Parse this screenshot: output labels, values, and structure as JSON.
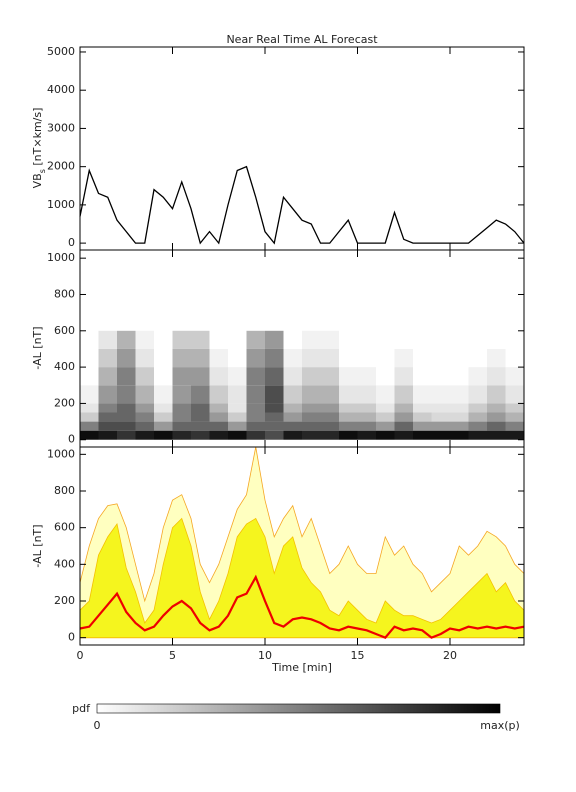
{
  "chart_data": [
    {
      "type": "line",
      "title": "Near Real Time AL Forecast",
      "ylabel": {
        "main": "VB",
        "sub": "s",
        "unit": " [nT×km/s]"
      },
      "xlim": [
        0,
        24
      ],
      "xticks": [
        0,
        5,
        10,
        15,
        20
      ],
      "ylim": [
        -180,
        5130
      ],
      "yticks": [
        0,
        1000,
        2000,
        3000,
        4000,
        5000
      ],
      "x": [
        0,
        0.5,
        1,
        1.5,
        2,
        2.5,
        3,
        3.5,
        4,
        4.5,
        5,
        5.5,
        6,
        6.5,
        7,
        7.5,
        8,
        8.5,
        9,
        9.5,
        10,
        10.5,
        11,
        11.5,
        12,
        12.5,
        13,
        13.5,
        14,
        14.5,
        15,
        15.5,
        16,
        16.5,
        17,
        17.5,
        18,
        18.5,
        19,
        19.5,
        20,
        20.5,
        21,
        21.5,
        22,
        22.5,
        23,
        23.5,
        24
      ],
      "series": [
        {
          "color": "#000000",
          "values": [
            700,
            1900,
            1300,
            1200,
            600,
            300,
            0,
            0,
            1400,
            1200,
            900,
            1600,
            900,
            0,
            300,
            0,
            1000,
            1900,
            2000,
            1200,
            300,
            0,
            1200,
            900,
            600,
            500,
            0,
            0,
            300,
            600,
            0,
            0,
            0,
            0,
            800,
            100,
            0,
            0,
            0,
            0,
            0,
            0,
            0,
            200,
            400,
            600,
            500,
            300,
            0
          ]
        }
      ]
    },
    {
      "type": "heatmap",
      "ylabel": "-AL [nT]",
      "xlim": [
        0,
        24
      ],
      "xticks": [
        0,
        5,
        10,
        15,
        20
      ],
      "ylim": [
        -40,
        1045
      ],
      "yticks": [
        0,
        200,
        400,
        600,
        800,
        1000
      ],
      "x_edges": [
        0,
        1,
        2,
        3,
        4,
        5,
        6,
        7,
        8,
        9,
        10,
        11,
        12,
        13,
        14,
        15,
        16,
        17,
        18,
        19,
        20,
        21,
        22,
        23,
        24
      ],
      "y_edges": [
        0,
        50,
        100,
        150,
        200,
        300,
        400,
        500,
        600
      ],
      "z": [
        [
          0.95,
          0.9,
          0.8,
          0.9,
          0.95,
          0.85,
          0.8,
          0.9,
          0.95,
          0.8,
          0.7,
          0.9,
          0.85,
          0.85,
          0.95,
          0.9,
          0.95,
          0.9,
          0.95,
          0.95,
          0.95,
          0.9,
          0.9,
          0.9
        ],
        [
          0.5,
          0.7,
          0.7,
          0.6,
          0.4,
          0.6,
          0.6,
          0.6,
          0.4,
          0.6,
          0.6,
          0.6,
          0.6,
          0.6,
          0.5,
          0.5,
          0.4,
          0.6,
          0.4,
          0.4,
          0.4,
          0.5,
          0.6,
          0.5
        ],
        [
          0.2,
          0.6,
          0.6,
          0.5,
          0.2,
          0.5,
          0.6,
          0.4,
          0.2,
          0.5,
          0.6,
          0.4,
          0.5,
          0.5,
          0.3,
          0.3,
          0.2,
          0.4,
          0.2,
          0.15,
          0.15,
          0.3,
          0.4,
          0.3
        ],
        [
          0.1,
          0.5,
          0.6,
          0.4,
          0.1,
          0.5,
          0.6,
          0.3,
          0.1,
          0.5,
          0.7,
          0.3,
          0.4,
          0.4,
          0.2,
          0.2,
          0.1,
          0.3,
          0.1,
          0.1,
          0.1,
          0.2,
          0.3,
          0.2
        ],
        [
          0.05,
          0.4,
          0.5,
          0.3,
          0.05,
          0.4,
          0.5,
          0.2,
          0.1,
          0.5,
          0.7,
          0.2,
          0.3,
          0.3,
          0.1,
          0.1,
          0.05,
          0.2,
          0.05,
          0.05,
          0.05,
          0.1,
          0.2,
          0.1
        ],
        [
          0,
          0.3,
          0.5,
          0.2,
          0,
          0.4,
          0.4,
          0.1,
          0.05,
          0.5,
          0.6,
          0.1,
          0.2,
          0.2,
          0.05,
          0.05,
          0,
          0.1,
          0,
          0,
          0,
          0.05,
          0.1,
          0.05
        ],
        [
          0,
          0.2,
          0.4,
          0.1,
          0,
          0.3,
          0.3,
          0.05,
          0,
          0.4,
          0.5,
          0.05,
          0.1,
          0.1,
          0,
          0,
          0,
          0.05,
          0,
          0,
          0,
          0,
          0.05,
          0
        ],
        [
          0,
          0.1,
          0.3,
          0.05,
          0,
          0.2,
          0.2,
          0,
          0,
          0.3,
          0.4,
          0,
          0.05,
          0.05,
          0,
          0,
          0,
          0,
          0,
          0,
          0,
          0,
          0,
          0
        ]
      ]
    },
    {
      "type": "area",
      "ylabel": "-AL [nT]",
      "xlabel": "Time [min]",
      "xlim": [
        0,
        24
      ],
      "xticks": [
        0,
        5,
        10,
        15,
        20
      ],
      "ylim": [
        -40,
        1040
      ],
      "yticks": [
        0,
        200,
        400,
        600,
        800,
        1000
      ],
      "x": [
        0,
        0.5,
        1,
        1.5,
        2,
        2.5,
        3,
        3.5,
        4,
        4.5,
        5,
        5.5,
        6,
        6.5,
        7,
        7.5,
        8,
        8.5,
        9,
        9.5,
        10,
        10.5,
        11,
        11.5,
        12,
        12.5,
        13,
        13.5,
        14,
        14.5,
        15,
        15.5,
        16,
        16.5,
        17,
        17.5,
        18,
        18.5,
        19,
        19.5,
        20,
        20.5,
        21,
        21.5,
        22,
        22.5,
        23,
        23.5,
        24
      ],
      "series": [
        {
          "color": "#ffffc0",
          "line_color": "#f5a623",
          "values": [
            300,
            500,
            650,
            720,
            730,
            600,
            400,
            200,
            350,
            600,
            750,
            780,
            650,
            400,
            300,
            400,
            550,
            700,
            780,
            1040,
            750,
            550,
            650,
            720,
            550,
            650,
            500,
            350,
            400,
            500,
            400,
            350,
            350,
            550,
            450,
            500,
            400,
            350,
            250,
            300,
            350,
            500,
            450,
            500,
            580,
            550,
            500,
            400,
            350
          ]
        },
        {
          "color": "#f5f51e",
          "line_color": "#f5c000",
          "values": [
            150,
            200,
            450,
            550,
            620,
            380,
            250,
            80,
            150,
            400,
            600,
            650,
            500,
            250,
            100,
            200,
            350,
            550,
            620,
            650,
            550,
            350,
            500,
            550,
            380,
            300,
            250,
            150,
            120,
            200,
            150,
            100,
            80,
            200,
            150,
            120,
            120,
            100,
            80,
            100,
            150,
            200,
            250,
            300,
            350,
            250,
            300,
            200,
            150
          ]
        },
        {
          "color": "#ee0000",
          "line": true,
          "values": [
            50,
            60,
            120,
            180,
            240,
            140,
            80,
            40,
            60,
            120,
            170,
            200,
            160,
            80,
            40,
            60,
            120,
            220,
            240,
            330,
            200,
            80,
            60,
            100,
            110,
            100,
            80,
            50,
            40,
            60,
            50,
            40,
            20,
            0,
            60,
            40,
            50,
            40,
            0,
            20,
            50,
            40,
            60,
            50,
            60,
            50,
            60,
            50,
            60
          ]
        }
      ]
    }
  ],
  "colorbar": {
    "label": "pdf",
    "min": 0,
    "max_label": "max(p)"
  }
}
